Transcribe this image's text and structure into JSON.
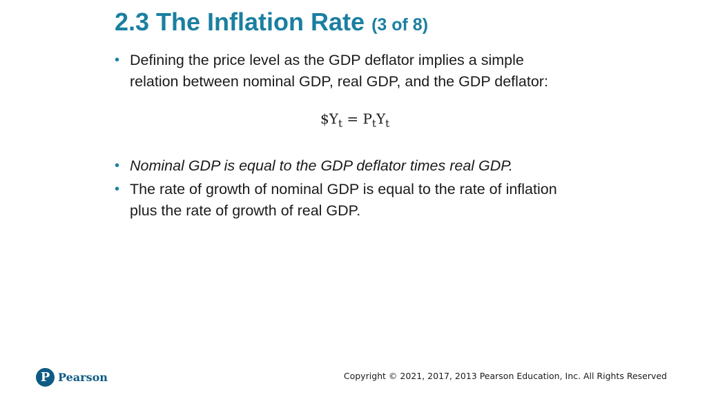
{
  "slide": {
    "title": "2.3 The Inflation Rate",
    "title_suffix": "(3 of 8)",
    "bullets": [
      {
        "text": "Defining the price level as the GDP deflator implies a simple relation between nominal GDP, real GDP, and the GDP deflator:"
      },
      {
        "text": "Nominal GDP is equal to the GDP deflator times real GDP."
      },
      {
        "text": "The rate of growth of nominal GDP is equal to the rate of inflation plus the rate of growth of real GDP."
      }
    ],
    "bullet_glyph": "•",
    "equation": {
      "lhs_prefix": "$Y",
      "lhs_sub": "t",
      "equals": "=",
      "rhs_p": "P",
      "rhs_p_sub": "t",
      "rhs_y": "Y",
      "rhs_y_sub": "t"
    }
  },
  "footer": {
    "logo_letter": "P",
    "logo_word": "Pearson",
    "copyright": "Copyright © 2021, 2017, 2013 Pearson Education, Inc. All Rights Reserved"
  },
  "colors": {
    "accent": "#1a7fa1",
    "logo": "#0d5b84",
    "text": "#1a1a1a"
  }
}
